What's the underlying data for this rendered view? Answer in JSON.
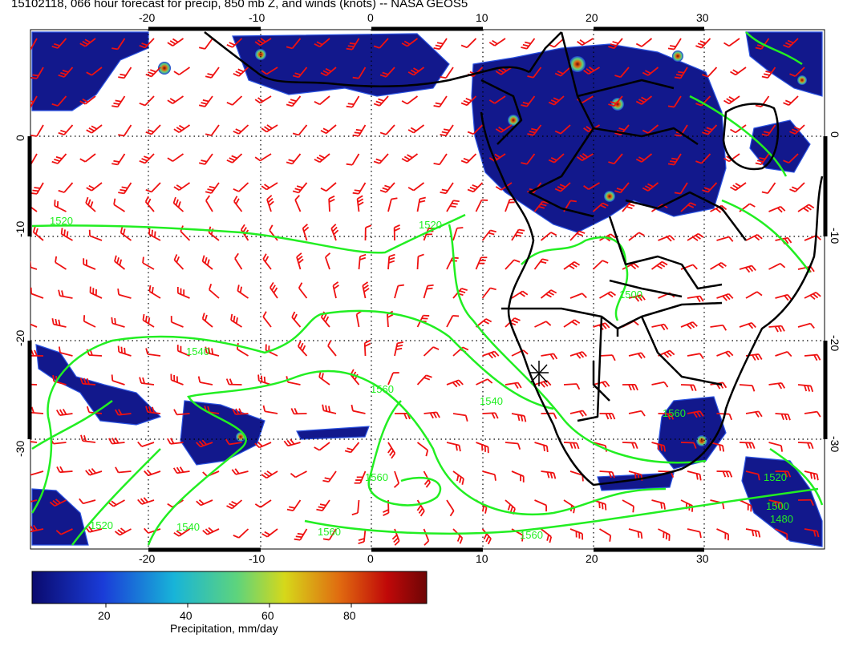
{
  "title": "15102118, 066 hour forecast for precip, 850 mb Z, and winds (knots) -- NASA GEOS5",
  "map": {
    "lon_ticks": [
      "-20",
      "-10",
      "0",
      "10",
      "20",
      "30"
    ],
    "lat_ticks": [
      "0",
      "-10",
      "-20",
      "-30"
    ],
    "contour_labels": [
      "1520",
      "1520",
      "1540",
      "1560",
      "1540",
      "1560",
      "1560",
      "1560",
      "1500",
      "1560",
      "1520",
      "1480",
      "1500",
      "1520",
      "1540"
    ],
    "wind_barb_color": "#ee1111",
    "contour_color": "#22ee22",
    "coastline_color": "#000000"
  },
  "colorbar": {
    "ticks": [
      "20",
      "40",
      "60",
      "80"
    ],
    "label": "Precipitation, mm/day",
    "colors": [
      "#0a0a6e",
      "#1a3cd8",
      "#18b4d8",
      "#5ed47c",
      "#d6d81a",
      "#e06a10",
      "#c00808",
      "#6e0606"
    ]
  }
}
